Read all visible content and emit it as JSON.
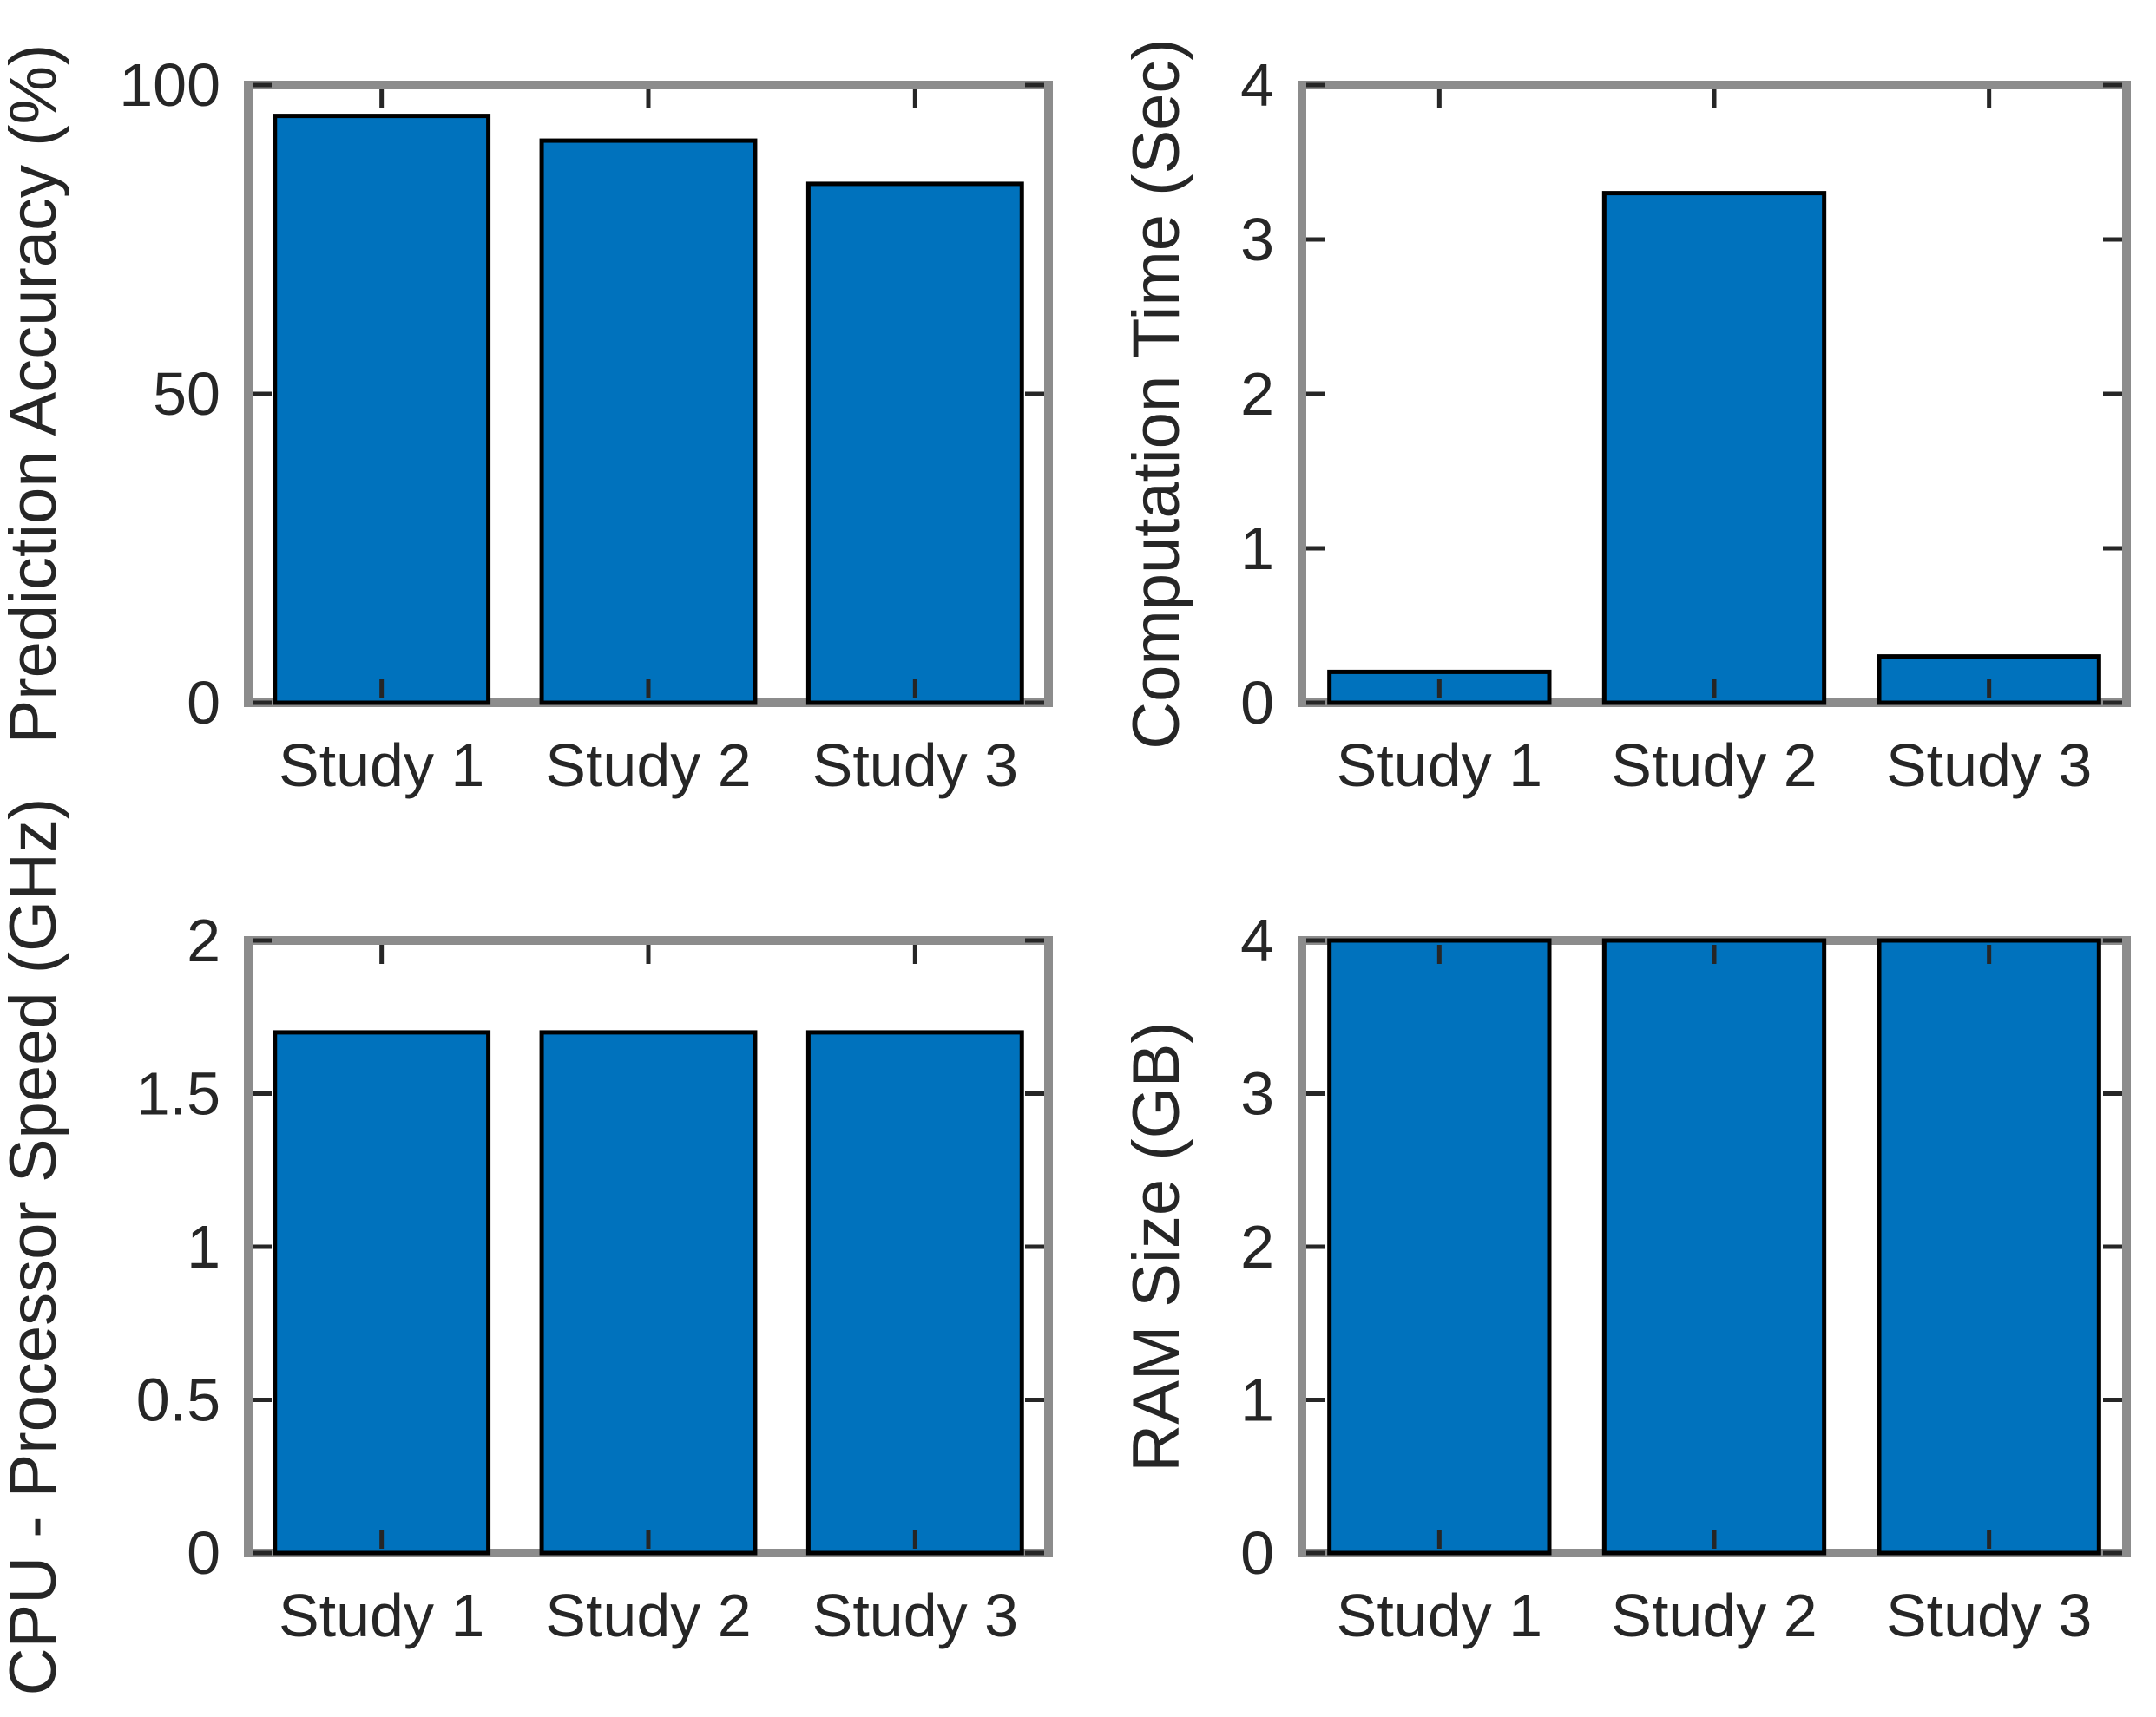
{
  "figure": {
    "background": "#ffffff"
  },
  "colors": {
    "bar_fill": "#0072BD",
    "bar_edge": "#000000",
    "axis_frame": "#8C8C8C",
    "tick": "#262626",
    "text": "#262626"
  },
  "chart_data": [
    {
      "type": "bar",
      "title": "",
      "ylabel": "Prediction Accuracy (%)",
      "xlabel": "",
      "categories": [
        "Study 1",
        "Study 2",
        "Study 3"
      ],
      "values": [
        95,
        91,
        84
      ],
      "ylim": [
        0,
        100
      ],
      "yticks": [
        0,
        50,
        100
      ],
      "ytick_labels": [
        "0",
        "50",
        "100"
      ],
      "grid": false,
      "legend": null
    },
    {
      "type": "bar",
      "title": "",
      "ylabel": "Computation Time (Sec)",
      "xlabel": "",
      "categories": [
        "Study 1",
        "Study 2",
        "Study 3"
      ],
      "values": [
        0.2,
        3.3,
        0.3
      ],
      "ylim": [
        0,
        4
      ],
      "yticks": [
        0,
        1,
        2,
        3,
        4
      ],
      "ytick_labels": [
        "0",
        "1",
        "2",
        "3",
        "4"
      ],
      "grid": false,
      "legend": null
    },
    {
      "type": "bar",
      "title": "",
      "ylabel": "CPU - Processor Speed (GHz)",
      "xlabel": "",
      "categories": [
        "Study 1",
        "Study 2",
        "Study 3"
      ],
      "values": [
        1.7,
        1.7,
        1.7
      ],
      "ylim": [
        0,
        2
      ],
      "yticks": [
        0,
        0.5,
        1,
        1.5,
        2
      ],
      "ytick_labels": [
        "0",
        "0.5",
        "1",
        "1.5",
        "2"
      ],
      "grid": false,
      "legend": null
    },
    {
      "type": "bar",
      "title": "",
      "ylabel": "RAM Size (GB)",
      "xlabel": "",
      "categories": [
        "Study 1",
        "Study 2",
        "Study 3"
      ],
      "values": [
        4,
        4,
        4
      ],
      "ylim": [
        0,
        4
      ],
      "yticks": [
        0,
        1,
        2,
        3,
        4
      ],
      "ytick_labels": [
        "0",
        "1",
        "2",
        "3",
        "4"
      ],
      "grid": false,
      "legend": null
    }
  ]
}
